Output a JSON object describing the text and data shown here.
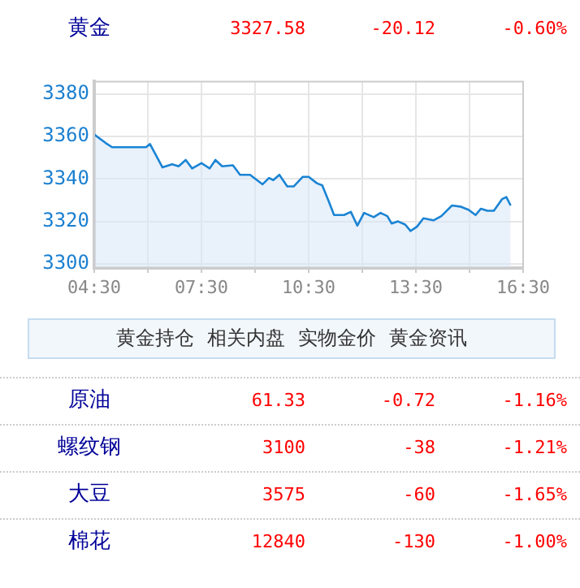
{
  "chart_data": {
    "type": "area",
    "title": "黄金",
    "annotations": [
      "3327.58",
      "-20.12",
      "-0.60%",
      "黄金持仓",
      "相关内盘",
      "实物金价",
      "黄金资讯",
      "原油",
      "61.33",
      "-0.72",
      "-1.16%",
      "螺纹钢",
      "3100",
      "-38",
      "-1.21%",
      "大豆",
      "3575",
      "-60",
      "-1.65%",
      "棉花",
      "12840",
      "-130",
      "-1.00%"
    ],
    "x": [
      4.5,
      4.82,
      5.0,
      5.95,
      6.06,
      6.41,
      6.68,
      6.86,
      7.06,
      7.24,
      7.5,
      7.73,
      7.89,
      8.08,
      8.38,
      8.58,
      8.86,
      9.21,
      9.39,
      9.51,
      9.68,
      9.9,
      10.08,
      10.33,
      10.5,
      10.73,
      10.88,
      11.06,
      11.21,
      11.49,
      11.68,
      11.86,
      12.05,
      12.32,
      12.51,
      12.7,
      12.82,
      13.0,
      13.2,
      13.35,
      13.53,
      13.71,
      13.99,
      14.21,
      14.51,
      14.74,
      14.97,
      15.17,
      15.32,
      15.5,
      15.68,
      15.91,
      16.03,
      16.15
    ],
    "series": [
      {
        "color": "#1a84d4",
        "values": [
          3361,
          3357,
          3355,
          3355,
          3356.5,
          3345.5,
          3347,
          3346,
          3349,
          3345,
          3347.5,
          3345,
          3349,
          3346,
          3346.5,
          3342,
          3342,
          3337.5,
          3340.5,
          3339.5,
          3342,
          3336.5,
          3336.5,
          3341,
          3341,
          3338,
          3337,
          3329.5,
          3323,
          3323,
          3324.5,
          3318,
          3324,
          3322,
          3324,
          3322.5,
          3319,
          3320,
          3318.5,
          3315.5,
          3317.5,
          3321.5,
          3320.5,
          3322.5,
          3327.5,
          3327,
          3325.5,
          3323,
          3326,
          3325,
          3325,
          3330.5,
          3331.5,
          3327.5
        ]
      }
    ],
    "xlim": [
      4.5,
      16.5
    ],
    "xticks": [
      {
        "value": 4.5,
        "label": "04:30"
      },
      {
        "value": 6,
        "label": null
      },
      {
        "value": 7.5,
        "label": "07:30"
      },
      {
        "value": 9,
        "label": null
      },
      {
        "value": 10.5,
        "label": "10:30"
      },
      {
        "value": 12,
        "label": null
      },
      {
        "value": 13.5,
        "label": "13:30"
      },
      {
        "value": 15,
        "label": null
      },
      {
        "value": 16.5,
        "label": "16:30"
      }
    ],
    "ylim": [
      3298,
      3386
    ],
    "yticks": [
      3300,
      3320,
      3340,
      3360,
      3380
    ],
    "grid": true,
    "marker": "none"
  }
}
